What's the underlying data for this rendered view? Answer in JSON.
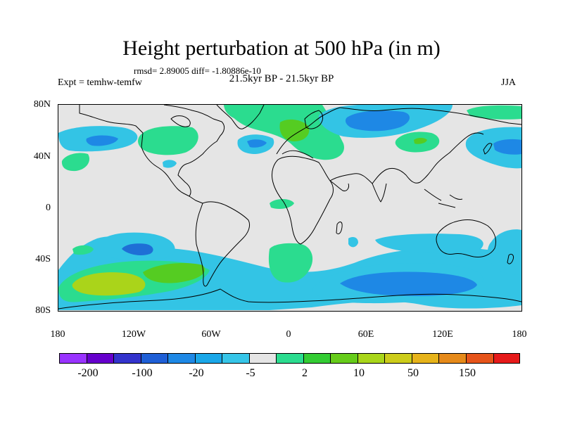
{
  "title": "Height perturbation at 500 hPa (in m)",
  "stats": "rmsd= 2.89005 diff= -1.80886e-10",
  "experiment": "Expt = temhw-temfw",
  "period": "21.5kyr BP - 21.5kyr BP",
  "season": "JJA",
  "lat_labels": [
    "80N",
    "40N",
    "0",
    "40S",
    "80S"
  ],
  "lon_labels": [
    "180",
    "120W",
    "60W",
    "0",
    "60E",
    "120E",
    "180"
  ],
  "colorbar": {
    "colors": [
      "#9933ff",
      "#6600cc",
      "#3333cc",
      "#1f5fd6",
      "#1e88e5",
      "#1aa7e8",
      "#36c5e8",
      "#e5e5e5",
      "#2bdc8f",
      "#33cc33",
      "#66cc1a",
      "#a9d61a",
      "#cccc1a",
      "#e6b31a",
      "#e68a1a",
      "#e6541a",
      "#e61a1a"
    ],
    "labels": [
      "-200",
      "-100",
      "-20",
      "-5",
      "2",
      "10",
      "50",
      "150"
    ]
  },
  "levels": {
    "light_cyan": "#33c4e5",
    "cyan": "#1ea0e0",
    "blue": "#1e6fd6",
    "teal_green": "#33d98a",
    "green": "#55cc22",
    "yellow_green": "#aad41a"
  }
}
